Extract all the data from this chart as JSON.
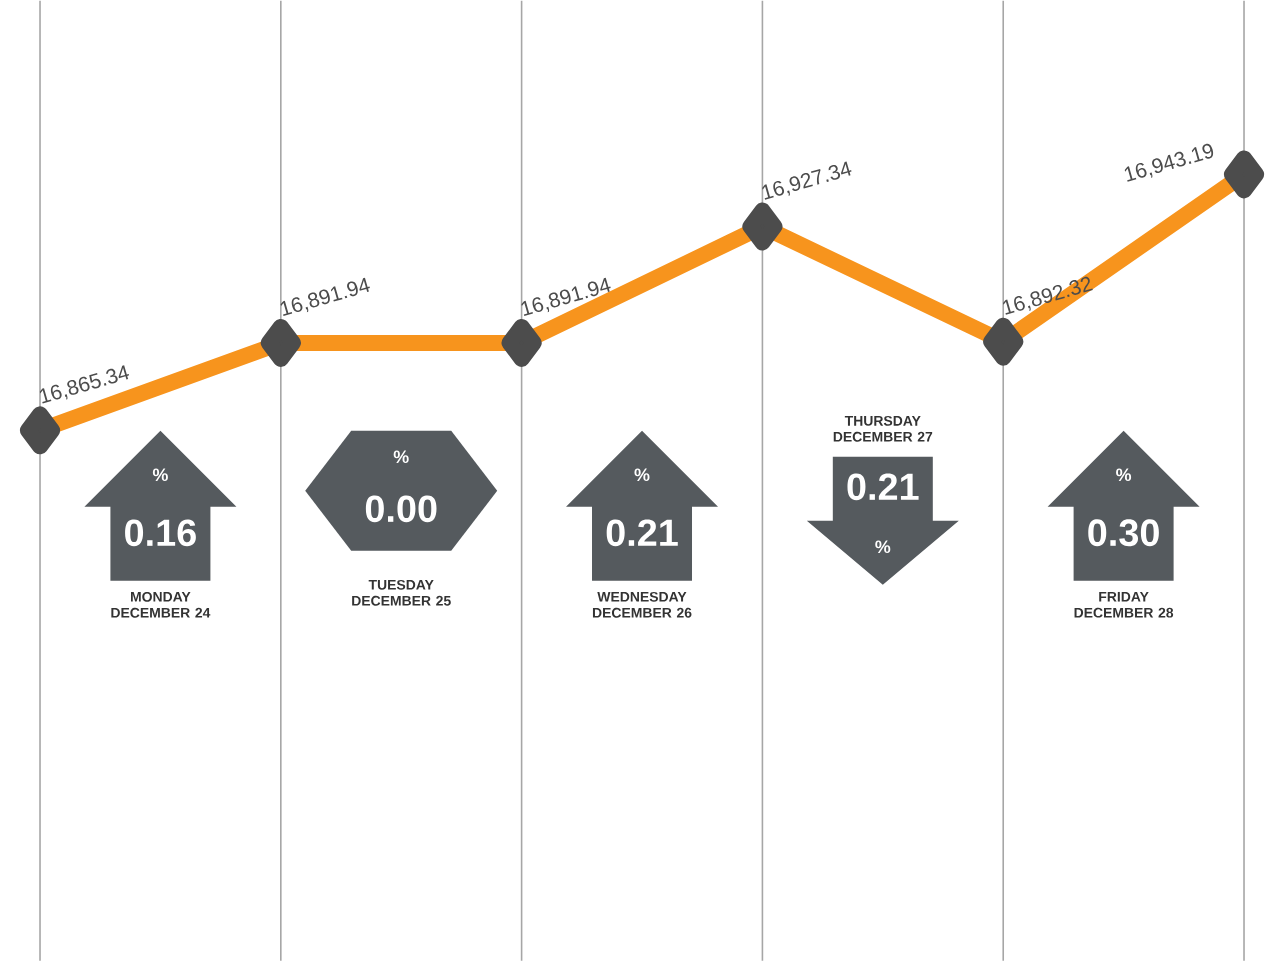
{
  "chart_data": {
    "type": "line",
    "categories": [
      null,
      null,
      null,
      null,
      null,
      null
    ],
    "series": [
      {
        "color": "#f7941d",
        "values": [
          16865.34,
          16891.94,
          16891.94,
          16927.34,
          16892.32,
          16943.19
        ],
        "value_labels": [
          "16,865.34",
          "16,891.94",
          "16,891.94",
          "16,927.34",
          "16,892.32",
          "16,943.19"
        ]
      }
    ],
    "ylim": [
      16704,
      16996
    ],
    "grid": "x",
    "marker": "diamond",
    "line_style": "solid",
    "annotations": [
      "MONDAY DECEMBER 24",
      "%",
      "0.16",
      "TUESDAY DECEMBER 25",
      "%",
      "0.00",
      "WEDNESDAY DECEMBER 26",
      "%",
      "0.21",
      "THURSDAY DECEMBER 27",
      "%",
      "0.21",
      "FRIDAY DECEMBER 28",
      "%",
      "0.30"
    ]
  }
}
